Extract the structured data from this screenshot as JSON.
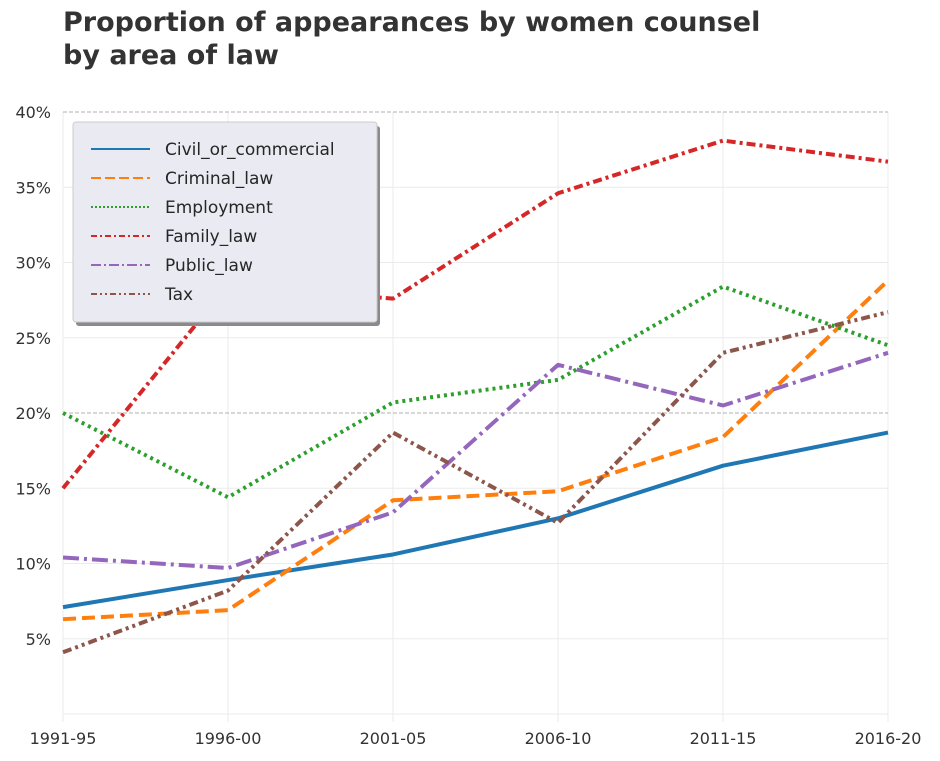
{
  "chart_data": {
    "type": "line",
    "title": "Proportion of appearances by women counsel by area of law",
    "title_lines": [
      "Proportion of appearances by women counsel",
      "by area of law"
    ],
    "xlabel": "",
    "ylabel": "",
    "x": [
      "1991-95",
      "1996-00",
      "2001-05",
      "2006-10",
      "2011-15",
      "2016-20"
    ],
    "ylim": [
      0,
      40
    ],
    "yticks": [
      5,
      10,
      15,
      20,
      25,
      30,
      35,
      40
    ],
    "ytick_labels": [
      "5%",
      "10%",
      "15%",
      "20%",
      "25%",
      "30%",
      "35%",
      "40%"
    ],
    "reference_lines": [
      20,
      40
    ],
    "grid": true,
    "legend_position": "top-left",
    "series": [
      {
        "name": "Civil_or_commercial",
        "color": "#1f77b4",
        "style": "solid",
        "values": [
          7.1,
          8.9,
          10.6,
          13.0,
          16.5,
          18.7
        ]
      },
      {
        "name": "Criminal_law",
        "color": "#ff7f0e",
        "style": "dashed",
        "values": [
          6.3,
          6.9,
          14.2,
          14.8,
          18.4,
          28.8
        ]
      },
      {
        "name": "Employment",
        "color": "#2ca02c",
        "style": "dotted",
        "values": [
          20.0,
          14.4,
          20.7,
          22.2,
          28.4,
          24.5
        ]
      },
      {
        "name": "Family_law",
        "color": "#d62728",
        "style": "dashdot-dense",
        "values": [
          15.0,
          28.5,
          27.6,
          34.6,
          38.1,
          36.7
        ]
      },
      {
        "name": "Public_law",
        "color": "#9467bd",
        "style": "dashdot",
        "values": [
          10.4,
          9.7,
          13.4,
          23.2,
          20.5,
          24.0
        ]
      },
      {
        "name": "Tax",
        "color": "#8c564b",
        "style": "dashdotdot",
        "values": [
          4.1,
          8.2,
          18.7,
          12.7,
          24.0,
          26.7
        ]
      }
    ]
  }
}
